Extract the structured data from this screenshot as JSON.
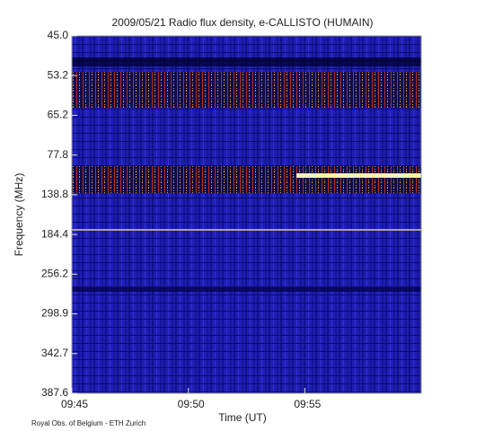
{
  "chart_data": {
    "type": "spectrogram",
    "title": "2009/05/21  Radio flux density, e-CALLISTO (HUMAIN)",
    "x_label": "Time (UT)",
    "y_label": "Frequency (MHz)",
    "xlim": [
      "09:45",
      "10:00"
    ],
    "xticks": [
      "09:45",
      "09:50",
      "09:55"
    ],
    "y_labels": [
      "45.0",
      "53.2",
      "65.2",
      "77.8",
      "138.8",
      "184.4",
      "256.2",
      "298.9",
      "342.7",
      "387.6"
    ],
    "footer": "Royal Obs. of Belgium - ETH Zurich"
  }
}
